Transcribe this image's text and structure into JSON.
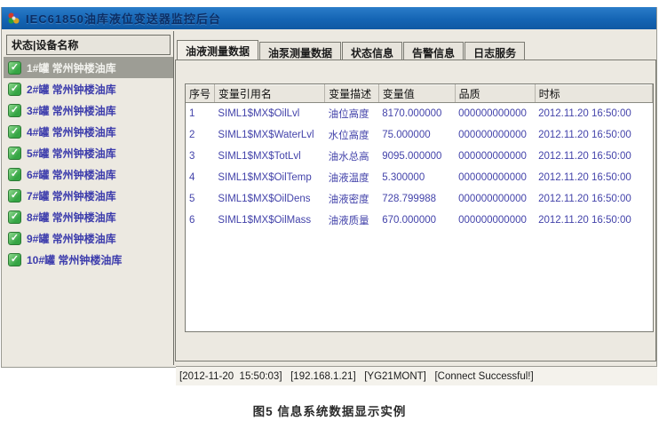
{
  "window": {
    "title": "IEC61850油库液位变送器监控后台",
    "app_icon": "pinwheel-app-icon"
  },
  "sidebar": {
    "header": "状态|设备名称",
    "check_icon": "green-check-icon",
    "items": [
      {
        "label": "1#罐 常州钟楼油库",
        "selected": true
      },
      {
        "label": "2#罐 常州钟楼油库",
        "selected": false
      },
      {
        "label": "3#罐 常州钟楼油库",
        "selected": false
      },
      {
        "label": "4#罐 常州钟楼油库",
        "selected": false
      },
      {
        "label": "5#罐 常州钟楼油库",
        "selected": false
      },
      {
        "label": "6#罐 常州钟楼油库",
        "selected": false
      },
      {
        "label": "7#罐 常州钟楼油库",
        "selected": false
      },
      {
        "label": "8#罐 常州钟楼油库",
        "selected": false
      },
      {
        "label": "9#罐 常州钟楼油库",
        "selected": false
      },
      {
        "label": "10#罐 常州钟楼油库",
        "selected": false
      }
    ]
  },
  "tabs": [
    {
      "name": "tab-oil-measure-data",
      "label": "油液测量数据",
      "active": true
    },
    {
      "name": "tab-pump-measure-data",
      "label": "油泵测量数据",
      "active": false
    },
    {
      "name": "tab-status-info",
      "label": "状态信息",
      "active": false
    },
    {
      "name": "tab-alarm-info",
      "label": "告警信息",
      "active": false
    },
    {
      "name": "tab-log-service",
      "label": "日志服务",
      "active": false
    }
  ],
  "table": {
    "columns": [
      "序号",
      "变量引用名",
      "变量描述",
      "变量值",
      "品质",
      "时标"
    ],
    "rows": [
      [
        "1",
        "SIML1$MX$OilLvl",
        "油位高度",
        "8170.000000",
        "000000000000",
        "2012.11.20 16:50:00"
      ],
      [
        "2",
        "SIML1$MX$WaterLvl",
        "水位高度",
        "75.000000",
        "000000000000",
        "2012.11.20 16:50:00"
      ],
      [
        "3",
        "SIML1$MX$TotLvl",
        "油水总高",
        "9095.000000",
        "000000000000",
        "2012.11.20 16:50:00"
      ],
      [
        "4",
        "SIML1$MX$OilTemp",
        "油液温度",
        "5.300000",
        "000000000000",
        "2012.11.20 16:50:00"
      ],
      [
        "5",
        "SIML1$MX$OilDens",
        "油液密度",
        "728.799988",
        "000000000000",
        "2012.11.20 16:50:00"
      ],
      [
        "6",
        "SIML1$MX$OilMass",
        "油液质量",
        "670.000000",
        "000000000000",
        "2012.11.20 16:50:00"
      ]
    ]
  },
  "status_bar": {
    "text": "[2012-11-20  15:50:03]   [192.168.1.21]   [YG21MONT]   [Connect Successful!]"
  },
  "caption": "图5   信息系统数据显示实例",
  "colors": {
    "titlebar_blue": "#1565b4",
    "panel_gray": "#ece9e1",
    "table_text_blue": "#4343aa",
    "sidebar_text_blue": "#3c3cac",
    "selected_item_bg": "#9d9d95",
    "check_green": "#35a544"
  }
}
